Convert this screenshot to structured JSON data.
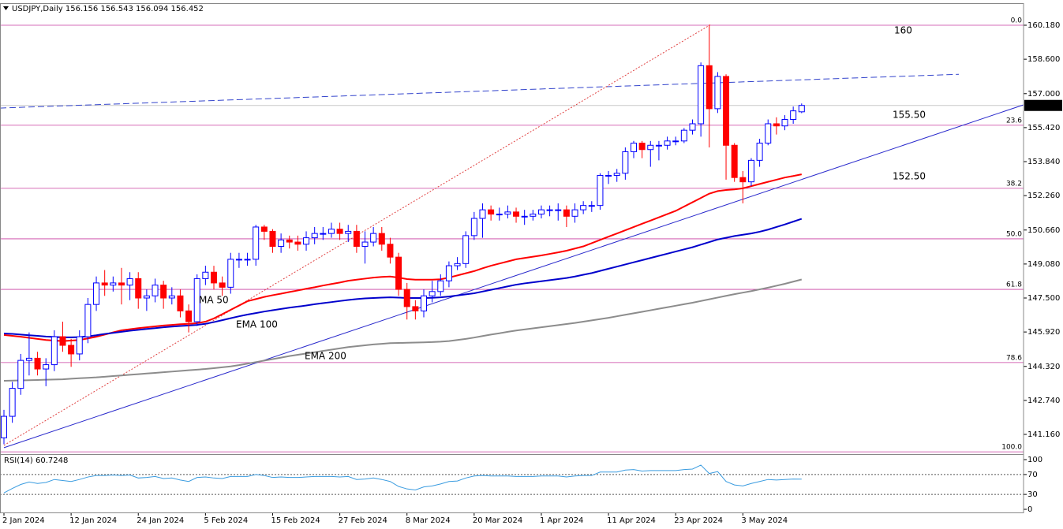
{
  "chart_data": {
    "type": "candlestick",
    "title": "USDJPY,Daily",
    "categories": [
      "2 Jan 2024",
      null,
      null,
      null,
      null,
      null,
      null,
      null,
      "12 Jan 2024",
      null,
      null,
      null,
      null,
      null,
      null,
      null,
      "24 Jan 2024",
      null,
      null,
      null,
      null,
      null,
      null,
      null,
      "5 Feb 2024",
      null,
      null,
      null,
      null,
      null,
      null,
      null,
      "15 Feb 2024",
      null,
      null,
      null,
      null,
      null,
      null,
      null,
      "27 Feb 2024",
      null,
      null,
      null,
      null,
      null,
      null,
      null,
      "8 Mar 2024",
      null,
      null,
      null,
      null,
      null,
      null,
      null,
      "20 Mar 2024",
      null,
      null,
      null,
      null,
      null,
      null,
      null,
      "1 Apr 2024",
      null,
      null,
      null,
      null,
      null,
      null,
      null,
      "11 Apr 2024",
      null,
      null,
      null,
      null,
      null,
      null,
      null,
      "23 Apr 2024",
      null,
      null,
      null,
      null,
      null,
      null,
      null,
      "3 May 2024",
      null,
      null,
      null,
      null,
      null,
      null,
      null
    ],
    "series": [
      {
        "up_color": "#0000ff",
        "down_color": "#ff0000",
        "open": [
          141.0,
          142.0,
          143.3,
          144.6,
          144.7,
          144.2,
          144.4,
          145.7,
          145.3,
          144.9,
          145.7,
          147.2,
          148.2,
          148.1,
          148.2,
          148.1,
          148.4,
          147.5,
          147.6,
          148.1,
          147.5,
          147.6,
          146.9,
          146.4,
          148.4,
          148.7,
          148.2,
          148.0,
          149.3,
          149.3,
          149.3,
          150.8,
          150.6,
          149.9,
          150.2,
          150.1,
          150.0,
          150.3,
          150.5,
          150.5,
          150.7,
          150.5,
          150.6,
          149.9,
          150.1,
          150.5,
          150.0,
          149.4,
          147.9,
          147.1,
          146.9,
          147.6,
          147.8,
          148.3,
          149.0,
          149.1,
          150.4,
          151.2,
          151.6,
          151.4,
          151.4,
          151.5,
          151.3,
          151.3,
          151.4,
          151.6,
          151.6,
          151.6,
          151.3,
          151.6,
          151.8,
          151.8,
          153.2,
          153.2,
          153.3,
          154.3,
          154.7,
          154.4,
          154.6,
          154.6,
          154.8,
          154.8,
          155.3,
          155.6,
          158.3,
          156.3,
          157.8,
          154.6,
          153.1,
          152.9,
          153.9,
          154.7,
          155.6,
          155.5,
          155.8,
          156.156
        ],
        "high": [
          142.3,
          143.6,
          144.9,
          145.9,
          145.0,
          144.7,
          146.0,
          146.4,
          145.6,
          146.0,
          147.5,
          148.5,
          148.8,
          148.5,
          148.9,
          148.7,
          148.7,
          147.9,
          148.4,
          148.3,
          148.0,
          147.9,
          147.2,
          148.6,
          149.0,
          149.0,
          148.5,
          149.6,
          149.6,
          149.6,
          150.9,
          150.9,
          150.7,
          150.5,
          150.4,
          150.4,
          150.6,
          150.8,
          150.8,
          151.0,
          151.0,
          150.9,
          150.9,
          150.6,
          150.8,
          150.8,
          150.3,
          149.6,
          148.2,
          147.4,
          147.9,
          148.3,
          148.6,
          149.2,
          149.4,
          150.6,
          151.5,
          151.9,
          151.8,
          151.7,
          151.8,
          151.7,
          151.6,
          151.6,
          151.8,
          151.8,
          151.9,
          151.8,
          151.9,
          152.0,
          152.0,
          153.3,
          153.4,
          153.5,
          154.5,
          154.8,
          154.8,
          154.8,
          154.8,
          155.0,
          155.0,
          155.4,
          155.8,
          158.45,
          160.2,
          158.0,
          157.9,
          154.7,
          153.4,
          154.0,
          154.9,
          155.8,
          155.9,
          156.0,
          156.4,
          156.543
        ],
        "low": [
          140.7,
          141.7,
          143.0,
          143.9,
          143.9,
          143.4,
          144.1,
          145.0,
          144.3,
          144.6,
          145.4,
          146.9,
          147.6,
          147.8,
          147.2,
          147.4,
          147.0,
          146.9,
          147.3,
          147.0,
          147.2,
          146.6,
          145.9,
          146.2,
          148.1,
          147.9,
          147.6,
          147.7,
          148.9,
          149.0,
          149.0,
          150.2,
          149.6,
          149.6,
          149.8,
          149.7,
          149.7,
          150.0,
          150.2,
          150.3,
          150.2,
          150.1,
          149.6,
          149.1,
          149.9,
          149.7,
          149.1,
          147.6,
          146.5,
          146.5,
          146.6,
          147.3,
          147.6,
          148.0,
          148.8,
          148.9,
          150.2,
          150.3,
          151.1,
          151.1,
          151.2,
          151.0,
          150.9,
          151.1,
          151.2,
          151.3,
          151.1,
          150.8,
          151.0,
          151.4,
          151.5,
          151.6,
          152.8,
          152.9,
          153.0,
          154.0,
          154.0,
          153.6,
          153.9,
          154.4,
          154.6,
          154.7,
          155.1,
          155.0,
          154.5,
          156.1,
          153.0,
          152.9,
          151.9,
          152.7,
          153.6,
          154.6,
          155.1,
          155.3,
          155.6,
          156.094
        ],
        "close": [
          142.0,
          143.3,
          144.6,
          144.7,
          144.2,
          144.4,
          145.7,
          145.3,
          144.9,
          145.7,
          147.2,
          148.2,
          148.1,
          148.2,
          148.1,
          148.4,
          147.5,
          147.6,
          148.1,
          147.5,
          147.6,
          146.9,
          146.4,
          148.4,
          148.7,
          148.2,
          148.0,
          149.3,
          149.3,
          149.3,
          150.8,
          150.6,
          149.9,
          150.2,
          150.1,
          150.0,
          150.3,
          150.5,
          150.5,
          150.7,
          150.5,
          150.6,
          149.9,
          150.1,
          150.5,
          150.0,
          149.4,
          147.9,
          147.1,
          146.9,
          147.6,
          147.8,
          148.3,
          149.0,
          149.1,
          150.4,
          151.2,
          151.6,
          151.4,
          151.4,
          151.5,
          151.3,
          151.3,
          151.4,
          151.6,
          151.6,
          151.6,
          151.3,
          151.6,
          151.8,
          151.8,
          153.2,
          153.2,
          153.3,
          154.3,
          154.7,
          154.4,
          154.6,
          154.6,
          154.8,
          154.8,
          155.3,
          155.6,
          158.3,
          156.3,
          157.8,
          154.6,
          153.1,
          152.9,
          153.9,
          154.7,
          155.6,
          155.5,
          155.8,
          156.2,
          156.452
        ]
      }
    ],
    "indicators": [
      {
        "name": "MA 50",
        "color": "#ff0000",
        "values": [
          145.78,
          145.74,
          145.7,
          145.65,
          145.6,
          145.55,
          145.52,
          145.5,
          145.52,
          145.55,
          145.62,
          145.7,
          145.8,
          145.9,
          146.0,
          146.05,
          146.1,
          146.14,
          146.18,
          146.22,
          146.25,
          146.28,
          146.3,
          146.33,
          146.4,
          146.55,
          146.75,
          146.95,
          147.15,
          147.35,
          147.45,
          147.55,
          147.63,
          147.7,
          147.78,
          147.85,
          147.93,
          148.0,
          148.08,
          148.15,
          148.22,
          148.3,
          148.35,
          148.4,
          148.45,
          148.48,
          148.5,
          148.45,
          148.38,
          148.35,
          148.35,
          148.35,
          148.37,
          148.45,
          148.55,
          148.65,
          148.75,
          148.88,
          149.0,
          149.1,
          149.2,
          149.3,
          149.36,
          149.42,
          149.48,
          149.55,
          149.62,
          149.7,
          149.8,
          149.9,
          150.05,
          150.2,
          150.35,
          150.5,
          150.65,
          150.8,
          150.95,
          151.1,
          151.25,
          151.4,
          151.55,
          151.75,
          151.95,
          152.15,
          152.35,
          152.47,
          152.52,
          152.55,
          152.6,
          152.7,
          152.8,
          152.9,
          153.0,
          153.1,
          153.17,
          153.25
        ]
      },
      {
        "name": "EMA 100",
        "color": "#0000cc",
        "values": [
          145.85,
          145.83,
          145.8,
          145.77,
          145.74,
          145.71,
          145.69,
          145.67,
          145.67,
          145.68,
          145.72,
          145.77,
          145.83,
          145.88,
          145.93,
          145.98,
          146.02,
          146.06,
          146.1,
          146.14,
          146.17,
          146.2,
          146.22,
          146.25,
          146.3,
          146.38,
          146.47,
          146.56,
          146.65,
          146.73,
          146.8,
          146.87,
          146.93,
          146.99,
          147.05,
          147.1,
          147.15,
          147.21,
          147.26,
          147.31,
          147.36,
          147.41,
          147.45,
          147.48,
          147.5,
          147.52,
          147.53,
          147.52,
          147.5,
          147.5,
          147.5,
          147.51,
          147.53,
          147.57,
          147.62,
          147.67,
          147.72,
          147.8,
          147.88,
          147.96,
          148.04,
          148.12,
          148.18,
          148.23,
          148.28,
          148.33,
          148.38,
          148.43,
          148.5,
          148.58,
          148.66,
          148.76,
          148.86,
          148.96,
          149.06,
          149.16,
          149.26,
          149.36,
          149.46,
          149.56,
          149.66,
          149.76,
          149.86,
          149.98,
          150.1,
          150.22,
          150.3,
          150.38,
          150.44,
          150.5,
          150.58,
          150.68,
          150.8,
          150.92,
          151.05,
          151.18
        ]
      },
      {
        "name": "EMA 200",
        "color": "#8c8c8c",
        "values": [
          143.65,
          143.66,
          143.67,
          143.68,
          143.69,
          143.7,
          143.71,
          143.72,
          143.75,
          143.77,
          143.79,
          143.81,
          143.84,
          143.87,
          143.9,
          143.93,
          143.96,
          143.99,
          144.02,
          144.05,
          144.08,
          144.11,
          144.14,
          144.17,
          144.2,
          144.24,
          144.28,
          144.32,
          144.38,
          144.45,
          144.52,
          144.59,
          144.66,
          144.73,
          144.8,
          144.86,
          144.92,
          144.98,
          145.04,
          145.1,
          145.16,
          145.22,
          145.26,
          145.3,
          145.34,
          145.37,
          145.4,
          145.41,
          145.42,
          145.43,
          145.44,
          145.45,
          145.47,
          145.5,
          145.55,
          145.6,
          145.66,
          145.73,
          145.8,
          145.86,
          145.93,
          145.99,
          146.04,
          146.09,
          146.14,
          146.19,
          146.24,
          146.29,
          146.34,
          146.4,
          146.46,
          146.52,
          146.58,
          146.65,
          146.72,
          146.79,
          146.86,
          146.93,
          147.0,
          147.07,
          147.14,
          147.21,
          147.28,
          147.36,
          147.44,
          147.52,
          147.6,
          147.68,
          147.75,
          147.82,
          147.9,
          147.98,
          148.07,
          148.16,
          148.26,
          148.36
        ]
      }
    ],
    "ylim": [
      140.28,
      161.17
    ],
    "yticks": [
      {
        "value": 160.18,
        "label": "160.180"
      },
      {
        "value": 158.6,
        "label": "158.600"
      },
      {
        "value": 157.0,
        "label": "157.000"
      },
      {
        "value": 155.42,
        "label": "155.420"
      },
      {
        "value": 153.84,
        "label": "153.840"
      },
      {
        "value": 152.26,
        "label": "152.260"
      },
      {
        "value": 150.66,
        "label": "150.660"
      },
      {
        "value": 149.08,
        "label": "149.080"
      },
      {
        "value": 147.5,
        "label": "147.500"
      },
      {
        "value": 145.92,
        "label": "145.920"
      },
      {
        "value": 144.32,
        "label": "144.320"
      },
      {
        "value": 142.74,
        "label": "142.740"
      },
      {
        "value": 141.16,
        "label": "141.160"
      }
    ],
    "fib_color": "#c83ca0",
    "fib_levels": [
      {
        "label": "0.0",
        "price": 160.18
      },
      {
        "label": "23.6",
        "price": 155.53
      },
      {
        "label": "38.2",
        "price": 152.6
      },
      {
        "label": "50.0",
        "price": 150.25
      },
      {
        "label": "61.8",
        "price": 147.9
      },
      {
        "label": "78.6",
        "price": 144.5
      },
      {
        "label": "100.0",
        "price": 140.35
      }
    ],
    "annotation_color": "#1f2fc8",
    "annotations": [
      "160",
      "155.50",
      "152.50"
    ],
    "trend_lines": [
      {
        "style": "dashed",
        "color": "#3344cc",
        "start": 156.33,
        "end": 157.9
      },
      {
        "style": "solid",
        "color": "#2a2acc",
        "start": 140.54,
        "end": 156.48
      },
      {
        "style": "dotted",
        "color": "#e04040",
        "start": 140.65,
        "end": 160.2
      }
    ],
    "price_line_color": "#c8c8c8",
    "rsi": {
      "title": "RSI(14)",
      "color": "#3a9ce0",
      "values": [
        33,
        42,
        50,
        55,
        52,
        54,
        60,
        58,
        56,
        60,
        65,
        68,
        68,
        69,
        68,
        69,
        63,
        64,
        66,
        62,
        63,
        59,
        56,
        64,
        65,
        63,
        62,
        66,
        66,
        66,
        70,
        68,
        64,
        65,
        64,
        64,
        65,
        66,
        66,
        66,
        65,
        66,
        60,
        61,
        63,
        60,
        56,
        46,
        41,
        39,
        45,
        47,
        51,
        56,
        57,
        63,
        67,
        68,
        67,
        67,
        67,
        66,
        66,
        66,
        67,
        67,
        67,
        65,
        67,
        68,
        68,
        75,
        75,
        75,
        79,
        80,
        77,
        78,
        78,
        78,
        78,
        80,
        81,
        89,
        72,
        76,
        56,
        49,
        47,
        52,
        56,
        60,
        59,
        60,
        61,
        60.7248
      ],
      "ylim": [
        -6.3,
        109.5
      ],
      "yticks": [
        0,
        30,
        70,
        100
      ],
      "levels": [
        30,
        70
      ]
    }
  }
}
